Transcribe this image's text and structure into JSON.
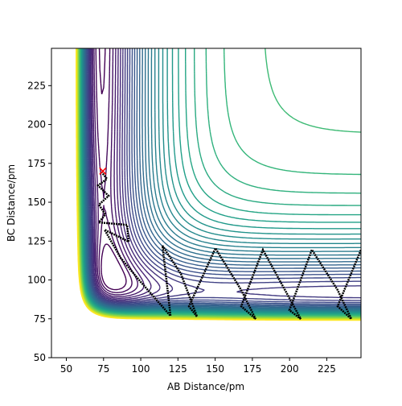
{
  "chart_data": {
    "type": "contour",
    "x_label": "AB Distance/pm",
    "y_label": "BC Distance/pm",
    "xlim": [
      40,
      248
    ],
    "ylim": [
      50,
      249
    ],
    "xticks": [
      50,
      75,
      100,
      125,
      150,
      175,
      200,
      225
    ],
    "yticks": [
      50,
      75,
      100,
      125,
      150,
      175,
      200,
      225
    ],
    "series": [
      {
        "name": "trajectory",
        "color": "#000000",
        "x": [
          73.5,
          77.3,
          71.3,
          78.4,
          71.9,
          76.2,
          71.9,
          90.8,
          91.9,
          75.7,
          86.5,
          100.0,
          120.0,
          116.2,
          114.6,
          127.0,
          137.8,
          132.4,
          150.2,
          167.5,
          177.2,
          167.5,
          182.1,
          199.9,
          207.5,
          199.9,
          215.0,
          232.3,
          241.5,
          232.3,
          248.0
        ],
        "y": [
          169.6,
          165.0,
          160.8,
          154.1,
          148.4,
          142.2,
          137.0,
          135.4,
          124.6,
          132.3,
          114.2,
          98.7,
          76.9,
          109.0,
          122.0,
          103.9,
          76.4,
          83.1,
          120.4,
          93.5,
          74.9,
          83.1,
          119.4,
          88.3,
          74.9,
          80.6,
          119.4,
          93.5,
          74.9,
          83.1,
          119.4
        ]
      },
      {
        "name": "start",
        "color": "#ff0000",
        "x": [
          74.5
        ],
        "y": [
          170
        ]
      }
    ]
  }
}
